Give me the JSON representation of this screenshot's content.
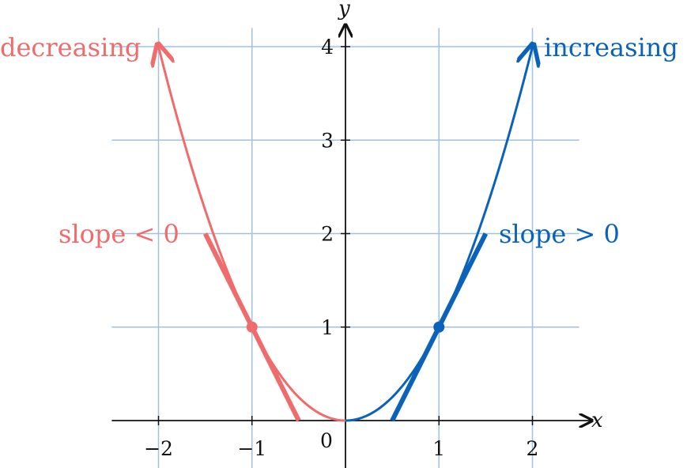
{
  "chart_data": {
    "type": "line",
    "function": "y = x^2",
    "xlabel": "x",
    "ylabel": "y",
    "xlim": [
      -2.5,
      2.5
    ],
    "ylim": [
      0,
      4
    ],
    "grid": true,
    "origin_label": "0",
    "x_ticks": [
      {
        "value": -2,
        "label": "−2"
      },
      {
        "value": -1,
        "label": "−1"
      },
      {
        "value": 1,
        "label": "1"
      },
      {
        "value": 2,
        "label": "2"
      }
    ],
    "y_ticks": [
      {
        "value": 1,
        "label": "1"
      },
      {
        "value": 2,
        "label": "2"
      },
      {
        "value": 3,
        "label": "3"
      },
      {
        "value": 4,
        "label": "4"
      }
    ],
    "series": [
      {
        "name": "decreasing",
        "color": "#f06b6b",
        "domain": [
          -2,
          0
        ],
        "arrow_at": -2,
        "point": [
          -1,
          1
        ],
        "tangent_segment": [
          [
            -1.5,
            2
          ],
          [
            -0.5,
            0
          ]
        ],
        "slope_text": "slope < 0"
      },
      {
        "name": "increasing",
        "color": "#0a63b8",
        "domain": [
          0,
          2
        ],
        "arrow_at": 2,
        "point": [
          1,
          1
        ],
        "tangent_segment": [
          [
            0.5,
            0
          ],
          [
            1.5,
            2
          ]
        ],
        "slope_text": "slope > 0"
      }
    ],
    "colors": {
      "grid": "#9ec2e0",
      "axis": "#111111"
    }
  }
}
